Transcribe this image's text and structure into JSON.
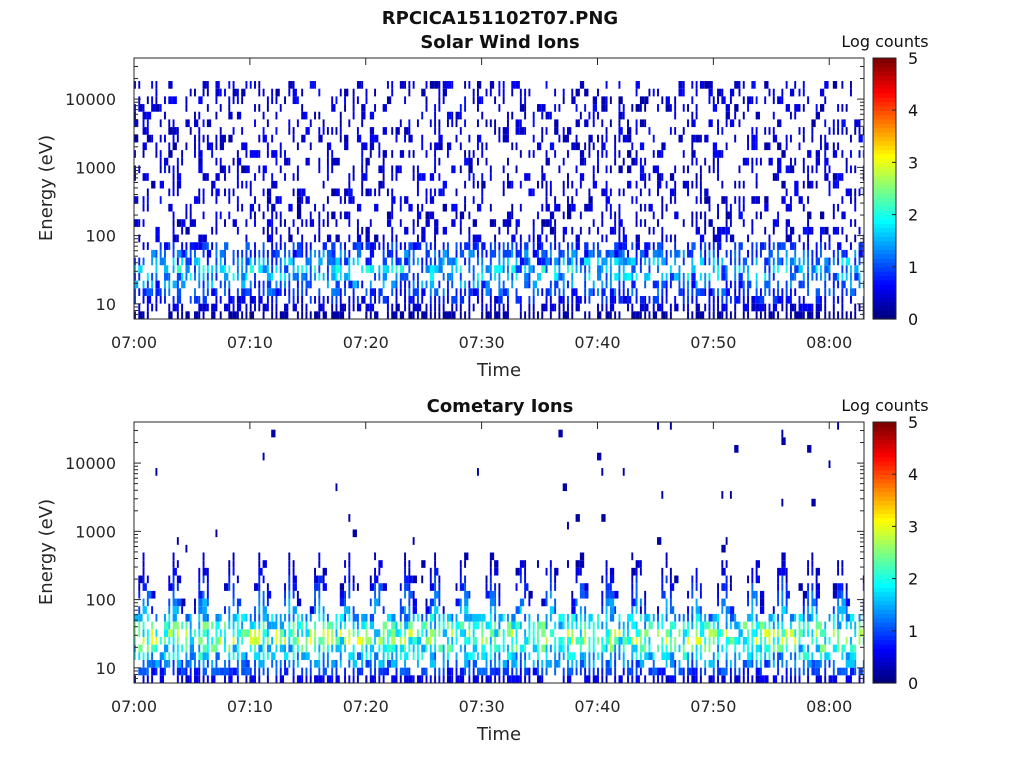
{
  "figure_title": "RPCICA151102T07.PNG",
  "chart_data": [
    {
      "type": "heatmap",
      "title": "Solar Wind Ions",
      "xlabel": "Time",
      "ylabel": "Energy (eV)",
      "y_scale": "log",
      "ylim": [
        6,
        40000
      ],
      "xlim": [
        "07:00",
        "08:03"
      ],
      "x_ticks": [
        "07:00",
        "07:10",
        "07:20",
        "07:30",
        "07:40",
        "07:50",
        "08:00"
      ],
      "y_ticks": [
        10,
        100,
        1000,
        10000
      ],
      "y_tick_labels": [
        "10",
        "100",
        "1000",
        "10000"
      ],
      "colorbar": {
        "label": "Log counts",
        "range": [
          0,
          5
        ],
        "ticks": [
          "0",
          "1",
          "2",
          "3",
          "4",
          "5"
        ],
        "colormap": "jet"
      },
      "pattern": "sparse low counts (0-1) scattered across 10 eV - 20 keV; denser band 10-80 eV with counts up to ~2",
      "time_resolution_min": 0.37,
      "band_center_eV": 30,
      "peak_log_counts": 2.1,
      "sparse_upper_eV": 20000
    },
    {
      "type": "heatmap",
      "title": "Cometary Ions",
      "xlabel": "Time",
      "ylabel": "Energy (eV)",
      "y_scale": "log",
      "ylim": [
        6,
        40000
      ],
      "xlim": [
        "07:00",
        "08:03"
      ],
      "x_ticks": [
        "07:00",
        "07:10",
        "07:20",
        "07:30",
        "07:40",
        "07:50",
        "08:00"
      ],
      "y_ticks": [
        10,
        100,
        1000,
        10000
      ],
      "y_tick_labels": [
        "10",
        "100",
        "1000",
        "10000"
      ],
      "colorbar": {
        "label": "Log counts",
        "range": [
          0,
          5
        ],
        "ticks": [
          "0",
          "1",
          "2",
          "3",
          "4",
          "5"
        ],
        "colormap": "jet"
      },
      "pattern": "periodic bursts every ~2.5 min extending from 10 eV up to ~500 eV; peak counts ~3.5 near 20-40 eV",
      "time_resolution_min": 0.37,
      "burst_period_min": 2.5,
      "band_center_eV": 28,
      "peak_log_counts": 3.5,
      "burst_upper_eV": 500
    }
  ]
}
